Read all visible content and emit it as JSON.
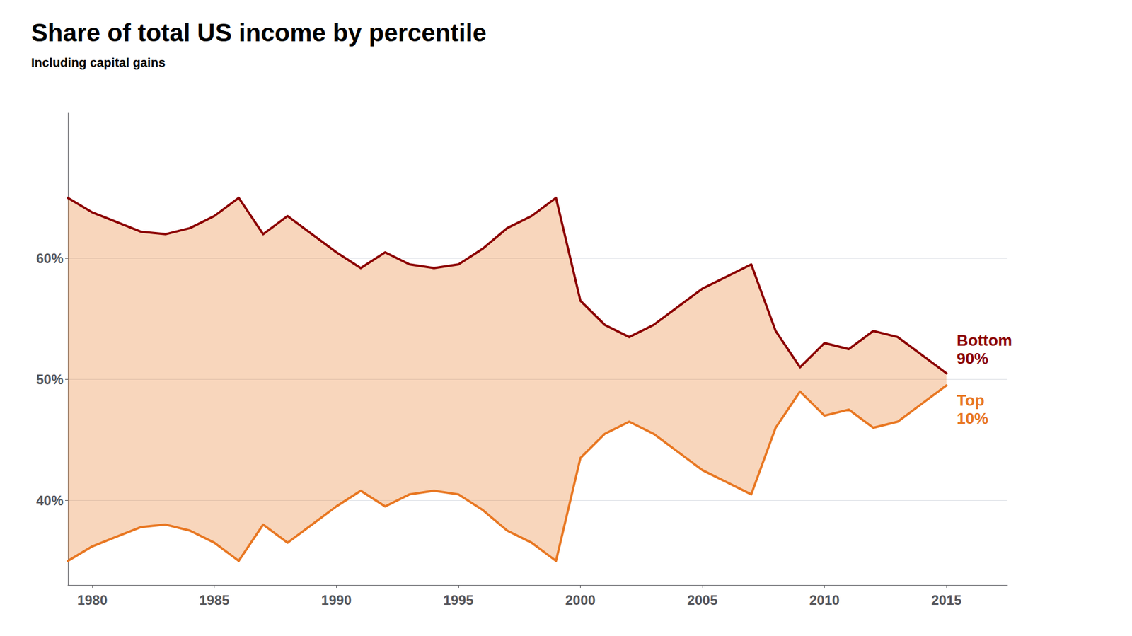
{
  "chart_data": {
    "type": "line",
    "title": "Share of total US income by percentile",
    "subtitle": "Including capital gains",
    "x": [
      1979,
      1980,
      1981,
      1982,
      1983,
      1984,
      1985,
      1986,
      1987,
      1988,
      1989,
      1990,
      1991,
      1992,
      1993,
      1994,
      1995,
      1996,
      1997,
      1998,
      1999,
      2000,
      2001,
      2002,
      2003,
      2004,
      2005,
      2006,
      2007,
      2008,
      2009,
      2010,
      2011,
      2012,
      2013,
      2014,
      2015
    ],
    "series": [
      {
        "name": "Bottom\n90%",
        "color": "#8b0000",
        "values": [
          65.0,
          63.8,
          63.0,
          62.2,
          62.0,
          62.5,
          63.5,
          65.0,
          62.0,
          63.5,
          62.0,
          60.5,
          59.2,
          60.5,
          59.5,
          59.2,
          59.5,
          60.8,
          62.5,
          63.5,
          65.0,
          56.5,
          54.5,
          53.5,
          54.5,
          56.0,
          57.5,
          58.5,
          59.5,
          54.0,
          51.0,
          53.0,
          52.5,
          54.0,
          53.5,
          52.0,
          50.5
        ]
      },
      {
        "name": "Top\n10%",
        "color": "#e87722",
        "values": [
          35.0,
          36.2,
          37.0,
          37.8,
          38.0,
          37.5,
          36.5,
          35.0,
          38.0,
          36.5,
          38.0,
          39.5,
          40.8,
          39.5,
          40.5,
          40.8,
          40.5,
          39.2,
          37.5,
          36.5,
          35.0,
          43.5,
          45.5,
          46.5,
          45.5,
          44.0,
          42.5,
          41.5,
          40.5,
          46.0,
          49.0,
          47.0,
          47.5,
          46.0,
          46.5,
          48.0,
          49.5
        ]
      }
    ],
    "xlim": [
      1979,
      2017.5
    ],
    "xticks": [
      1980,
      1985,
      1990,
      1995,
      2000,
      2005,
      2010,
      2015
    ],
    "ylim": [
      33,
      72
    ],
    "yticks": [
      {
        "value": 40,
        "label": "40%"
      },
      {
        "value": 50,
        "label": "50%"
      },
      {
        "value": 60,
        "label": "60%"
      }
    ],
    "grid": true
  }
}
